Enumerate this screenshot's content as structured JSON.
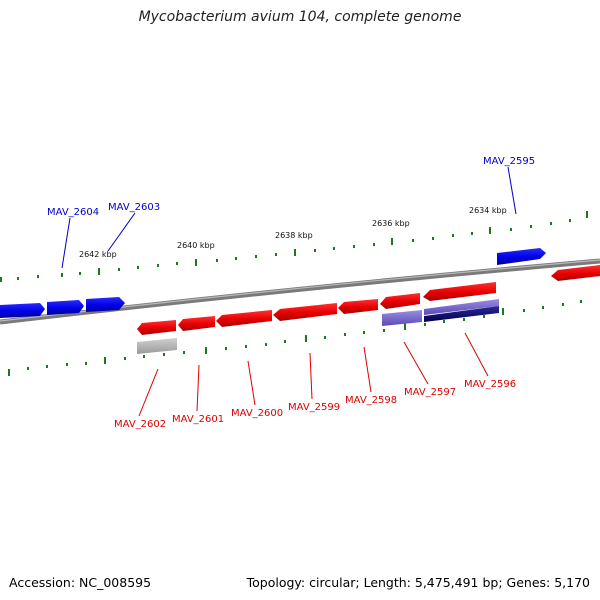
{
  "title": "Mycobacterium avium 104, complete genome",
  "accession_label": "Accession: NC_008595",
  "summary_label": "Topology: circular; Length: 5,475,491 bp; Genes: 5,170",
  "colors": {
    "backbone": "#808080",
    "forward": "#0000ee",
    "reverse": "#ee0000",
    "tick": "#1a7a1a",
    "pseudo": "#b0b0b0",
    "feature_light": "#6a5acd",
    "feature_dark": "#00007a"
  },
  "scale_labels": [
    "2642 kbp",
    "2640 kbp",
    "2638 kbp",
    "2636 kbp",
    "2634 kbp"
  ],
  "forward_genes": [
    "MAV_2604",
    "MAV_2603",
    "MAV_2595"
  ],
  "reverse_genes": [
    "MAV_2602",
    "MAV_2601",
    "MAV_2600",
    "MAV_2599",
    "MAV_2598",
    "MAV_2597",
    "MAV_2596"
  ]
}
